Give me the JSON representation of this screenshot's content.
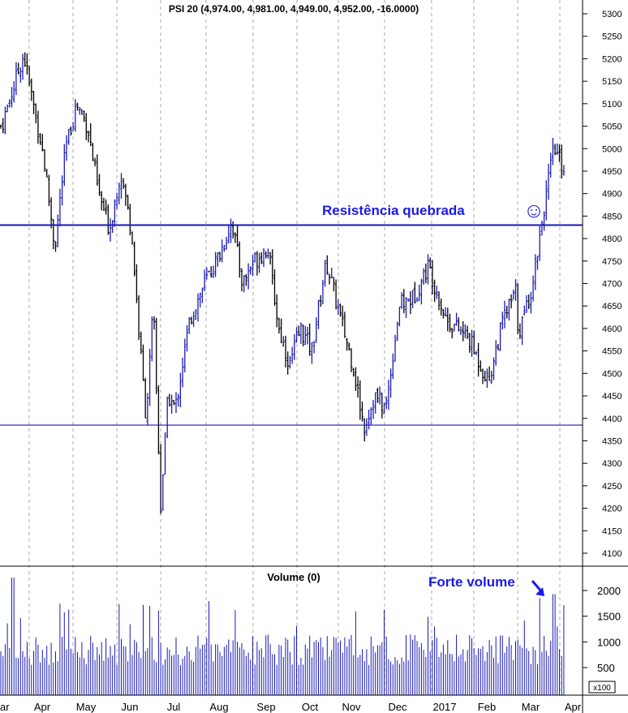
{
  "price_panel": {
    "title": "PSI 20 (4,974.00, 4,981.00, 4,949.00, 4,952.00, -16.0000)",
    "annotation": "Resistência quebrada",
    "smiley": "☺"
  },
  "volume_panel": {
    "title": "Volume (0)",
    "annotation": "Forte volume",
    "multiplier": "x100"
  },
  "colors": {
    "up_bar": "#1a1ab8",
    "down_bar": "#000000",
    "annotation": "#1a1ae6",
    "lines": "#1a1ab8"
  },
  "chart_data": [
    {
      "type": "ohlc",
      "name": "price",
      "title": "PSI 20 (4,974.00, 4,981.00, 4,949.00, 4,952.00, -16.0000)",
      "y_ticks": [
        4100,
        4150,
        4200,
        4250,
        4300,
        4350,
        4400,
        4450,
        4500,
        4550,
        4600,
        4650,
        4700,
        4750,
        4800,
        4850,
        4900,
        4950,
        5000,
        5050,
        5100,
        5150,
        5200,
        5250,
        5300
      ],
      "ylim": [
        4065,
        5320
      ],
      "x_tick_labels": [
        "ar",
        "Apr",
        "May",
        "Jun",
        "Jul",
        "Aug",
        "Sep",
        "Oct",
        "Nov",
        "Dec",
        "2017",
        "Feb",
        "Mar",
        "Apr"
      ],
      "horizontal_lines": [
        {
          "value": 4830,
          "label": "Resistência quebrada"
        },
        {
          "value": 4385
        }
      ],
      "close_path": [
        [
          "Mar",
          5050
        ],
        [
          "Mar",
          5210
        ],
        [
          "Apr",
          4980
        ],
        [
          "Apr",
          4780
        ],
        [
          "Apr",
          5000
        ],
        [
          "Apr",
          5100
        ],
        [
          "May",
          5050
        ],
        [
          "May",
          4900
        ],
        [
          "May",
          4820
        ],
        [
          "May",
          4950
        ],
        [
          "Jun",
          4820
        ],
        [
          "Jun",
          4600
        ],
        [
          "Jun",
          4400
        ],
        [
          "Jun",
          4650
        ],
        [
          "Jun",
          4200
        ],
        [
          "Jun",
          4450
        ],
        [
          "Jul",
          4420
        ],
        [
          "Jul",
          4620
        ],
        [
          "Jul",
          4700
        ],
        [
          "Aug",
          4770
        ],
        [
          "Aug",
          4840
        ],
        [
          "Aug",
          4700
        ],
        [
          "Aug",
          4750
        ],
        [
          "Sep",
          4780
        ],
        [
          "Sep",
          4600
        ],
        [
          "Sep",
          4520
        ],
        [
          "Sep",
          4600
        ],
        [
          "Oct",
          4550
        ],
        [
          "Oct",
          4750
        ],
        [
          "Oct",
          4620
        ],
        [
          "Nov",
          4520
        ],
        [
          "Nov",
          4380
        ],
        [
          "Nov",
          4450
        ],
        [
          "Nov",
          4420
        ],
        [
          "Dec",
          4650
        ],
        [
          "Dec",
          4670
        ],
        [
          "Dec",
          4740
        ],
        [
          "2017",
          4620
        ],
        [
          "2017",
          4580
        ],
        [
          "Feb",
          4480
        ],
        [
          "Feb",
          4620
        ],
        [
          "Feb",
          4690
        ],
        [
          "Mar",
          4640
        ],
        [
          "Mar",
          4600
        ],
        [
          "Mar",
          4690
        ],
        [
          "Mar",
          4850
        ],
        [
          "Mar",
          5000
        ],
        [
          "Mar",
          4952
        ]
      ]
    },
    {
      "type": "bar",
      "name": "volume",
      "title": "Volume (0)",
      "y_ticks": [
        500,
        1000,
        1500,
        2000
      ],
      "ylim": [
        0,
        2350
      ],
      "multiplier": "x100",
      "notable_values": [
        2250,
        1850,
        1930
      ],
      "annotation": "Forte volume"
    }
  ]
}
